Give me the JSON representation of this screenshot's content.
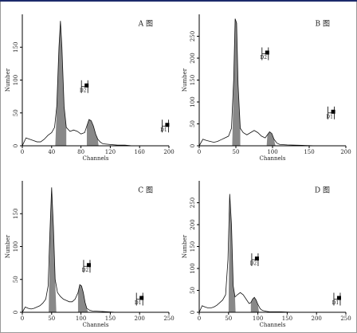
{
  "chart_data": [
    {
      "type": "area",
      "title": "A 图",
      "x_label": "Channels",
      "y_label": "Number",
      "x": [
        0,
        5,
        10,
        15,
        20,
        25,
        30,
        35,
        40,
        44,
        47,
        50,
        52,
        54,
        57,
        60,
        65,
        70,
        75,
        80,
        85,
        88,
        91,
        94,
        97,
        100,
        103,
        106,
        110,
        120,
        130,
        140,
        150,
        160,
        170,
        180,
        190,
        200
      ],
      "values": [
        0,
        12,
        10,
        8,
        6,
        6,
        10,
        16,
        20,
        28,
        60,
        150,
        190,
        150,
        60,
        28,
        22,
        24,
        22,
        18,
        20,
        30,
        40,
        38,
        30,
        18,
        10,
        6,
        3,
        2,
        1,
        1,
        0,
        0,
        0,
        0,
        0,
        0
      ],
      "shaded": [
        [
          45,
          60
        ],
        [
          88,
          104
        ]
      ],
      "color": "#888888",
      "xlim": [
        0,
        200
      ],
      "xticks": [
        0,
        40,
        80,
        120,
        160,
        200
      ],
      "ylim": [
        0,
        200
      ],
      "yticks": [
        0,
        50,
        100,
        150
      ],
      "gates": [
        {
          "label": "D2",
          "x": 85,
          "y": 90
        },
        {
          "label": "D1",
          "x": 195,
          "y": 30
        }
      ]
    },
    {
      "type": "area",
      "title": "B 图",
      "x_label": "Channels",
      "y_label": "Number",
      "x": [
        0,
        5,
        10,
        15,
        20,
        25,
        30,
        35,
        40,
        44,
        47,
        49,
        51,
        53,
        56,
        60,
        65,
        70,
        75,
        80,
        85,
        90,
        93,
        96,
        99,
        102,
        106,
        110,
        120,
        140,
        160,
        180,
        200
      ],
      "values": [
        0,
        15,
        12,
        10,
        8,
        10,
        14,
        18,
        22,
        40,
        150,
        290,
        280,
        140,
        40,
        30,
        25,
        30,
        35,
        30,
        22,
        18,
        25,
        32,
        28,
        15,
        6,
        3,
        2,
        1,
        0,
        0,
        0
      ],
      "shaded": [
        [
          45,
          56
        ],
        [
          92,
          104
        ]
      ],
      "color": "#888888",
      "xlim": [
        0,
        200
      ],
      "xticks": [
        0,
        50,
        100,
        150,
        200
      ],
      "ylim": [
        0,
        300
      ],
      "yticks": [
        0,
        50,
        100,
        150,
        200,
        250
      ],
      "gates": [
        {
          "label": "D2",
          "x": 90,
          "y": 210
        },
        {
          "label": "D1",
          "x": 180,
          "y": 75
        }
      ]
    },
    {
      "type": "area",
      "title": "C 图",
      "x_label": "Channels",
      "y_label": "Number",
      "x": [
        0,
        5,
        10,
        15,
        20,
        25,
        30,
        35,
        40,
        44,
        47,
        50,
        53,
        56,
        60,
        65,
        70,
        75,
        80,
        85,
        90,
        95,
        98,
        101,
        104,
        107,
        110,
        115,
        120,
        140,
        160,
        180,
        200,
        220,
        250
      ],
      "values": [
        0,
        8,
        6,
        5,
        6,
        8,
        10,
        14,
        20,
        40,
        120,
        190,
        130,
        50,
        30,
        24,
        20,
        18,
        16,
        16,
        20,
        30,
        42,
        40,
        30,
        15,
        6,
        3,
        2,
        1,
        0,
        0,
        0,
        0,
        0
      ],
      "shaded": [
        [
          45,
          58
        ],
        [
          95,
          112
        ]
      ],
      "color": "#888888",
      "xlim": [
        0,
        250
      ],
      "xticks": [
        0,
        50,
        100,
        150,
        200,
        250
      ],
      "ylim": [
        0,
        200
      ],
      "yticks": [
        0,
        50,
        100,
        150
      ],
      "gates": [
        {
          "label": "D2",
          "x": 110,
          "y": 70
        },
        {
          "label": "D1",
          "x": 200,
          "y": 20
        }
      ]
    },
    {
      "type": "area",
      "title": "D 图",
      "x_label": "Channels",
      "y_label": "Number",
      "x": [
        0,
        5,
        10,
        15,
        20,
        25,
        30,
        35,
        40,
        45,
        49,
        52,
        55,
        58,
        61,
        65,
        70,
        75,
        80,
        85,
        88,
        91,
        94,
        97,
        100,
        104,
        108,
        115,
        120,
        140,
        160,
        180,
        200,
        220,
        250
      ],
      "values": [
        0,
        15,
        12,
        10,
        10,
        12,
        16,
        22,
        28,
        40,
        120,
        270,
        200,
        60,
        35,
        40,
        45,
        40,
        30,
        20,
        22,
        30,
        34,
        28,
        18,
        8,
        4,
        2,
        1,
        1,
        0,
        0,
        0,
        0,
        0
      ],
      "shaded": [
        [
          50,
          62
        ],
        [
          88,
          102
        ]
      ],
      "color": "#888888",
      "xlim": [
        0,
        250
      ],
      "xticks": [
        0,
        50,
        100,
        150,
        200,
        250
      ],
      "ylim": [
        0,
        300
      ],
      "yticks": [
        0,
        50,
        100,
        150,
        200,
        250
      ],
      "gates": [
        {
          "label": "D2",
          "x": 95,
          "y": 120
        },
        {
          "label": "D1",
          "x": 235,
          "y": 30
        }
      ]
    }
  ]
}
